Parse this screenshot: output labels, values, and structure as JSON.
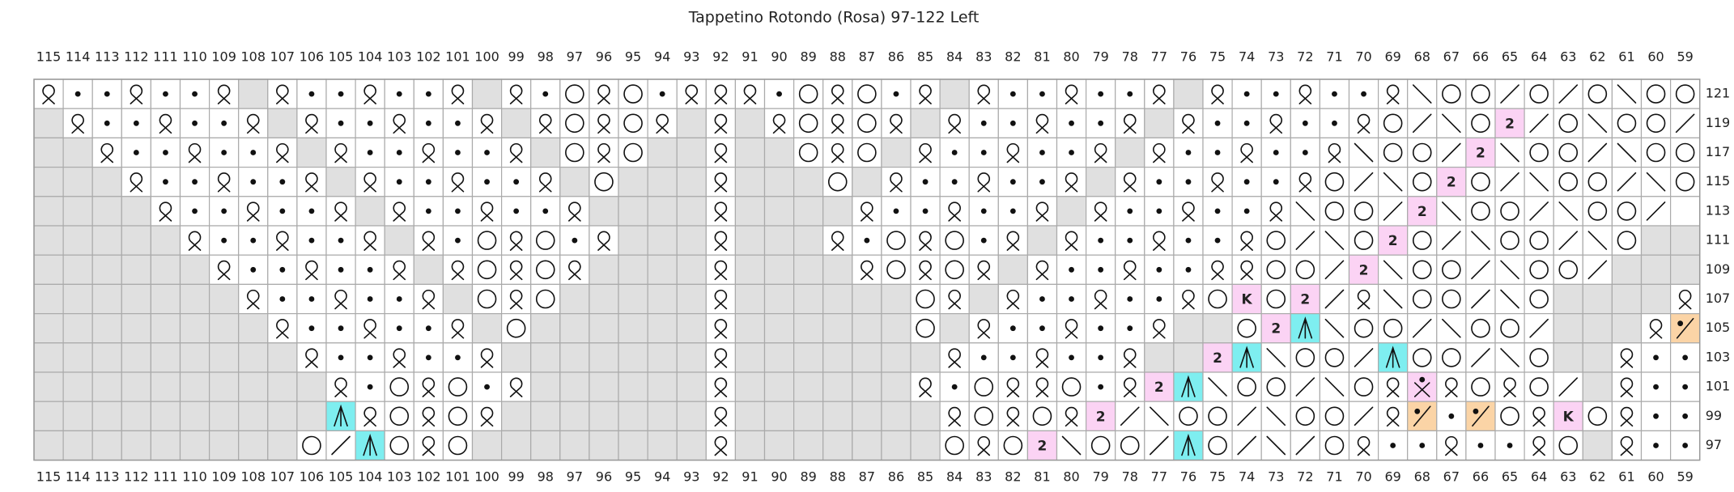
{
  "title": "Tappetino Rotondo (Rosa) 97-122   Left",
  "columns": [
    115,
    114,
    113,
    112,
    111,
    110,
    109,
    108,
    107,
    106,
    105,
    104,
    103,
    102,
    101,
    100,
    99,
    98,
    97,
    96,
    95,
    94,
    93,
    92,
    91,
    90,
    89,
    88,
    87,
    86,
    85,
    84,
    83,
    82,
    81,
    80,
    79,
    78,
    77,
    76,
    75,
    74,
    73,
    72,
    71,
    70,
    69,
    68,
    67,
    66,
    65,
    64,
    63,
    62,
    61,
    60,
    59
  ],
  "rows": [
    {
      "label": 121,
      "cells": [
        "q",
        "p",
        "p",
        "q",
        "p",
        "p",
        "q",
        "g",
        "q",
        "p",
        "p",
        "q",
        "p",
        "p",
        "q",
        "g",
        "q",
        "p",
        "o",
        "q",
        "o",
        "p",
        "q",
        "q",
        "q",
        "p",
        "o",
        "q",
        "o",
        "p",
        "q",
        "g",
        "q",
        "p",
        "p",
        "q",
        "p",
        "p",
        "q",
        "g",
        "q",
        "p",
        "p",
        "q",
        "p",
        "p",
        "q",
        "r",
        "o",
        "o",
        "l",
        "o",
        "l",
        "o",
        "r",
        "o",
        "o"
      ]
    },
    {
      "label": 119,
      "cells": [
        "g",
        "q",
        "p",
        "p",
        "q",
        "p",
        "p",
        "q",
        "g",
        "q",
        "p",
        "p",
        "q",
        "p",
        "p",
        "q",
        "g",
        "q",
        "o",
        "q",
        "o",
        "q",
        "g",
        "q",
        "g",
        "q",
        "o",
        "q",
        "o",
        "q",
        "g",
        "q",
        "p",
        "p",
        "q",
        "p",
        "p",
        "q",
        "g",
        "q",
        "p",
        "p",
        "q",
        "p",
        "p",
        "q",
        "o",
        "l",
        "r",
        "o",
        "2",
        "l",
        "o",
        "r",
        "o",
        "o",
        "l"
      ]
    },
    {
      "label": 117,
      "cells": [
        "g",
        "g",
        "q",
        "p",
        "p",
        "q",
        "p",
        "p",
        "q",
        "g",
        "q",
        "p",
        "p",
        "q",
        "p",
        "p",
        "q",
        "g",
        "o",
        "q",
        "o",
        "g",
        "g",
        "q",
        "g",
        "g",
        "o",
        "q",
        "o",
        "g",
        "q",
        "p",
        "p",
        "q",
        "p",
        "p",
        "q",
        "g",
        "q",
        "p",
        "p",
        "q",
        "p",
        "p",
        "q",
        "r",
        "o",
        "o",
        "l",
        "2",
        "r",
        "o",
        "o",
        "l",
        "r",
        "o",
        "o"
      ]
    },
    {
      "label": 115,
      "cells": [
        "g",
        "g",
        "g",
        "q",
        "p",
        "p",
        "q",
        "p",
        "p",
        "q",
        "g",
        "q",
        "p",
        "p",
        "q",
        "p",
        "p",
        "q",
        "g",
        "o",
        "g",
        "g",
        "g",
        "q",
        "g",
        "g",
        "g",
        "o",
        "g",
        "q",
        "p",
        "p",
        "q",
        "p",
        "p",
        "q",
        "g",
        "q",
        "p",
        "p",
        "q",
        "p",
        "p",
        "q",
        "o",
        "l",
        "r",
        "o",
        "2",
        "o",
        "l",
        "r",
        "o",
        "o",
        "l",
        "r",
        "o"
      ]
    },
    {
      "label": 113,
      "cells": [
        "g",
        "g",
        "g",
        "g",
        "q",
        "p",
        "p",
        "q",
        "p",
        "p",
        "q",
        "g",
        "q",
        "p",
        "p",
        "q",
        "p",
        "p",
        "q",
        "g",
        "g",
        "g",
        "g",
        "q",
        "g",
        "g",
        "g",
        "g",
        "q",
        "p",
        "p",
        "q",
        "p",
        "p",
        "q",
        "g",
        "q",
        "p",
        "p",
        "q",
        "p",
        "p",
        "q",
        "r",
        "o",
        "o",
        "l",
        "2",
        "r",
        "o",
        "o",
        "l",
        "r",
        "o",
        "o",
        "l",
        "w"
      ]
    },
    {
      "label": 111,
      "cells": [
        "g",
        "g",
        "g",
        "g",
        "g",
        "q",
        "p",
        "p",
        "q",
        "p",
        "p",
        "q",
        "g",
        "q",
        "p",
        "o",
        "q",
        "o",
        "p",
        "q",
        "g",
        "g",
        "g",
        "q",
        "g",
        "g",
        "g",
        "q",
        "p",
        "o",
        "q",
        "o",
        "p",
        "q",
        "g",
        "q",
        "p",
        "p",
        "q",
        "p",
        "p",
        "q",
        "o",
        "l",
        "r",
        "o",
        "2",
        "o",
        "l",
        "r",
        "o",
        "o",
        "l",
        "r",
        "o",
        "g",
        "g"
      ]
    },
    {
      "label": 109,
      "cells": [
        "g",
        "g",
        "g",
        "g",
        "g",
        "g",
        "q",
        "p",
        "p",
        "q",
        "p",
        "p",
        "q",
        "g",
        "q",
        "o",
        "q",
        "o",
        "q",
        "g",
        "g",
        "g",
        "g",
        "q",
        "g",
        "g",
        "g",
        "g",
        "q",
        "o",
        "q",
        "o",
        "q",
        "g",
        "q",
        "p",
        "p",
        "q",
        "p",
        "p",
        "q",
        "q",
        "o",
        "o",
        "l",
        "2",
        "r",
        "o",
        "o",
        "l",
        "r",
        "o",
        "o",
        "l",
        "g",
        "g",
        "g"
      ]
    },
    {
      "label": 107,
      "cells": [
        "g",
        "g",
        "g",
        "g",
        "g",
        "g",
        "g",
        "q",
        "p",
        "p",
        "q",
        "p",
        "p",
        "q",
        "g",
        "o",
        "q",
        "o",
        "g",
        "g",
        "g",
        "g",
        "g",
        "q",
        "g",
        "g",
        "g",
        "g",
        "g",
        "g",
        "o",
        "q",
        "g",
        "q",
        "p",
        "p",
        "q",
        "p",
        "p",
        "q",
        "o",
        "K",
        "o",
        "2",
        "l",
        "q",
        "r",
        "o",
        "o",
        "l",
        "r",
        "o",
        "g",
        "g",
        "g",
        "g",
        "q"
      ]
    },
    {
      "label": 105,
      "cells": [
        "g",
        "g",
        "g",
        "g",
        "g",
        "g",
        "g",
        "g",
        "q",
        "p",
        "p",
        "q",
        "p",
        "p",
        "q",
        "g",
        "o",
        "g",
        "g",
        "g",
        "g",
        "g",
        "g",
        "q",
        "g",
        "g",
        "g",
        "g",
        "g",
        "g",
        "o",
        "g",
        "q",
        "p",
        "p",
        "q",
        "p",
        "p",
        "q",
        "g",
        "g",
        "o",
        "2",
        "a",
        "r",
        "o",
        "o",
        "l",
        "r",
        "o",
        "o",
        "l",
        "g",
        "g",
        "g",
        "q",
        "f"
      ]
    },
    {
      "label": 103,
      "cells": [
        "g",
        "g",
        "g",
        "g",
        "g",
        "g",
        "g",
        "g",
        "g",
        "q",
        "p",
        "p",
        "q",
        "p",
        "p",
        "q",
        "g",
        "g",
        "g",
        "g",
        "g",
        "g",
        "g",
        "q",
        "g",
        "g",
        "g",
        "g",
        "g",
        "g",
        "g",
        "q",
        "p",
        "p",
        "q",
        "p",
        "p",
        "q",
        "g",
        "g",
        "2",
        "a",
        "r",
        "o",
        "o",
        "l",
        "a",
        "o",
        "o",
        "l",
        "r",
        "o",
        "g",
        "g",
        "q",
        "p",
        "p"
      ]
    },
    {
      "label": 101,
      "cells": [
        "g",
        "g",
        "g",
        "g",
        "g",
        "g",
        "g",
        "g",
        "g",
        "g",
        "q",
        "p",
        "o",
        "q",
        "o",
        "p",
        "q",
        "g",
        "g",
        "g",
        "g",
        "g",
        "g",
        "q",
        "g",
        "g",
        "g",
        "g",
        "g",
        "g",
        "q",
        "p",
        "o",
        "q",
        "q",
        "o",
        "p",
        "q",
        "2",
        "a",
        "r",
        "o",
        "o",
        "l",
        "r",
        "o",
        "q",
        "x",
        "q",
        "o",
        "q",
        "o",
        "l",
        "g",
        "q",
        "p",
        "p"
      ]
    },
    {
      "label": 99,
      "cells": [
        "g",
        "g",
        "g",
        "g",
        "g",
        "g",
        "g",
        "g",
        "g",
        "g",
        "a",
        "q",
        "o",
        "q",
        "o",
        "q",
        "g",
        "g",
        "g",
        "g",
        "g",
        "g",
        "g",
        "q",
        "g",
        "g",
        "g",
        "g",
        "g",
        "g",
        "g",
        "q",
        "o",
        "q",
        "o",
        "q",
        "2",
        "l",
        "r",
        "o",
        "o",
        "l",
        "r",
        "o",
        "o",
        "l",
        "q",
        "f",
        "p",
        "f",
        "o",
        "q",
        "K",
        "o",
        "q",
        "p",
        "p"
      ]
    },
    {
      "label": 97,
      "cells": [
        "g",
        "g",
        "g",
        "g",
        "g",
        "g",
        "g",
        "g",
        "g",
        "o",
        "l",
        "a",
        "o",
        "q",
        "o",
        "g",
        "g",
        "g",
        "g",
        "g",
        "g",
        "g",
        "g",
        "q",
        "g",
        "g",
        "g",
        "g",
        "g",
        "g",
        "g",
        "o",
        "q",
        "o",
        "2",
        "r",
        "o",
        "o",
        "l",
        "a",
        "o",
        "l",
        "r",
        "l",
        "o",
        "q",
        "p",
        "p",
        "q",
        "p",
        "p",
        "q",
        "o",
        "g",
        "q",
        "p",
        "p"
      ]
    }
  ]
}
